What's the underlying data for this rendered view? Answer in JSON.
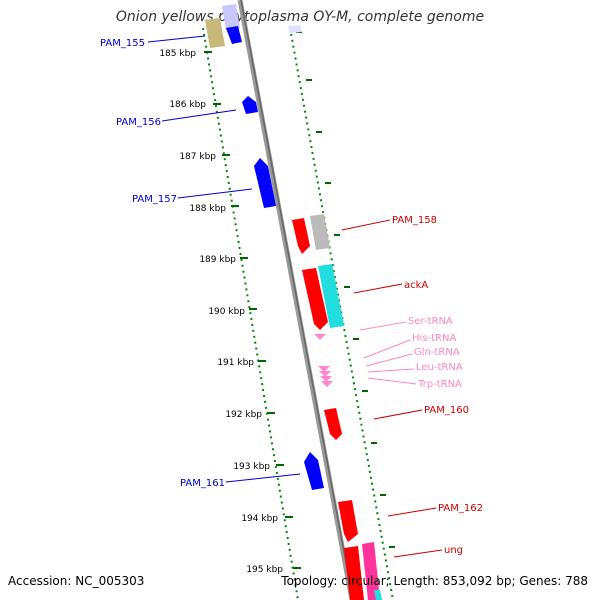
{
  "title": "Onion yellows phytoplasma OY-M, complete genome",
  "accession": "Accession: NC_005303",
  "topology": "Topology: circular; Length: 853,092 bp; Genes: 788",
  "colors": {
    "forward_gene": "#ff0000",
    "reverse_gene": "#0000ff",
    "trna": "#ff88cc",
    "feature_cyan": "#22dddd",
    "feature_gray": "#bbbbbb",
    "feature_magenta": "#ff3399",
    "feature_khaki": "#c8b87a",
    "feature_lavender": "#c8c8ff",
    "scale_ticks": "#006600",
    "backbone": "#888888",
    "label_forward": "#cc0000",
    "label_reverse": "#0000cc",
    "label_trna": "#ff88bb"
  },
  "scale_labels": [
    "185 kbp",
    "186 kbp",
    "187 kbp",
    "188 kbp",
    "189 kbp",
    "190 kbp",
    "191 kbp",
    "192 kbp",
    "193 kbp",
    "194 kbp",
    "195 kbp"
  ],
  "gene_labels_reverse": [
    "PAM_155",
    "PAM_156",
    "PAM_157",
    "PAM_161"
  ],
  "gene_labels_forward": [
    "PAM_158",
    "ackA",
    "PAM_160",
    "PAM_162",
    "ung"
  ],
  "trna_labels": [
    "Ser-tRNA",
    "His-tRNA",
    "Gln-tRNA",
    "Leu-tRNA",
    "Trp-tRNA"
  ]
}
